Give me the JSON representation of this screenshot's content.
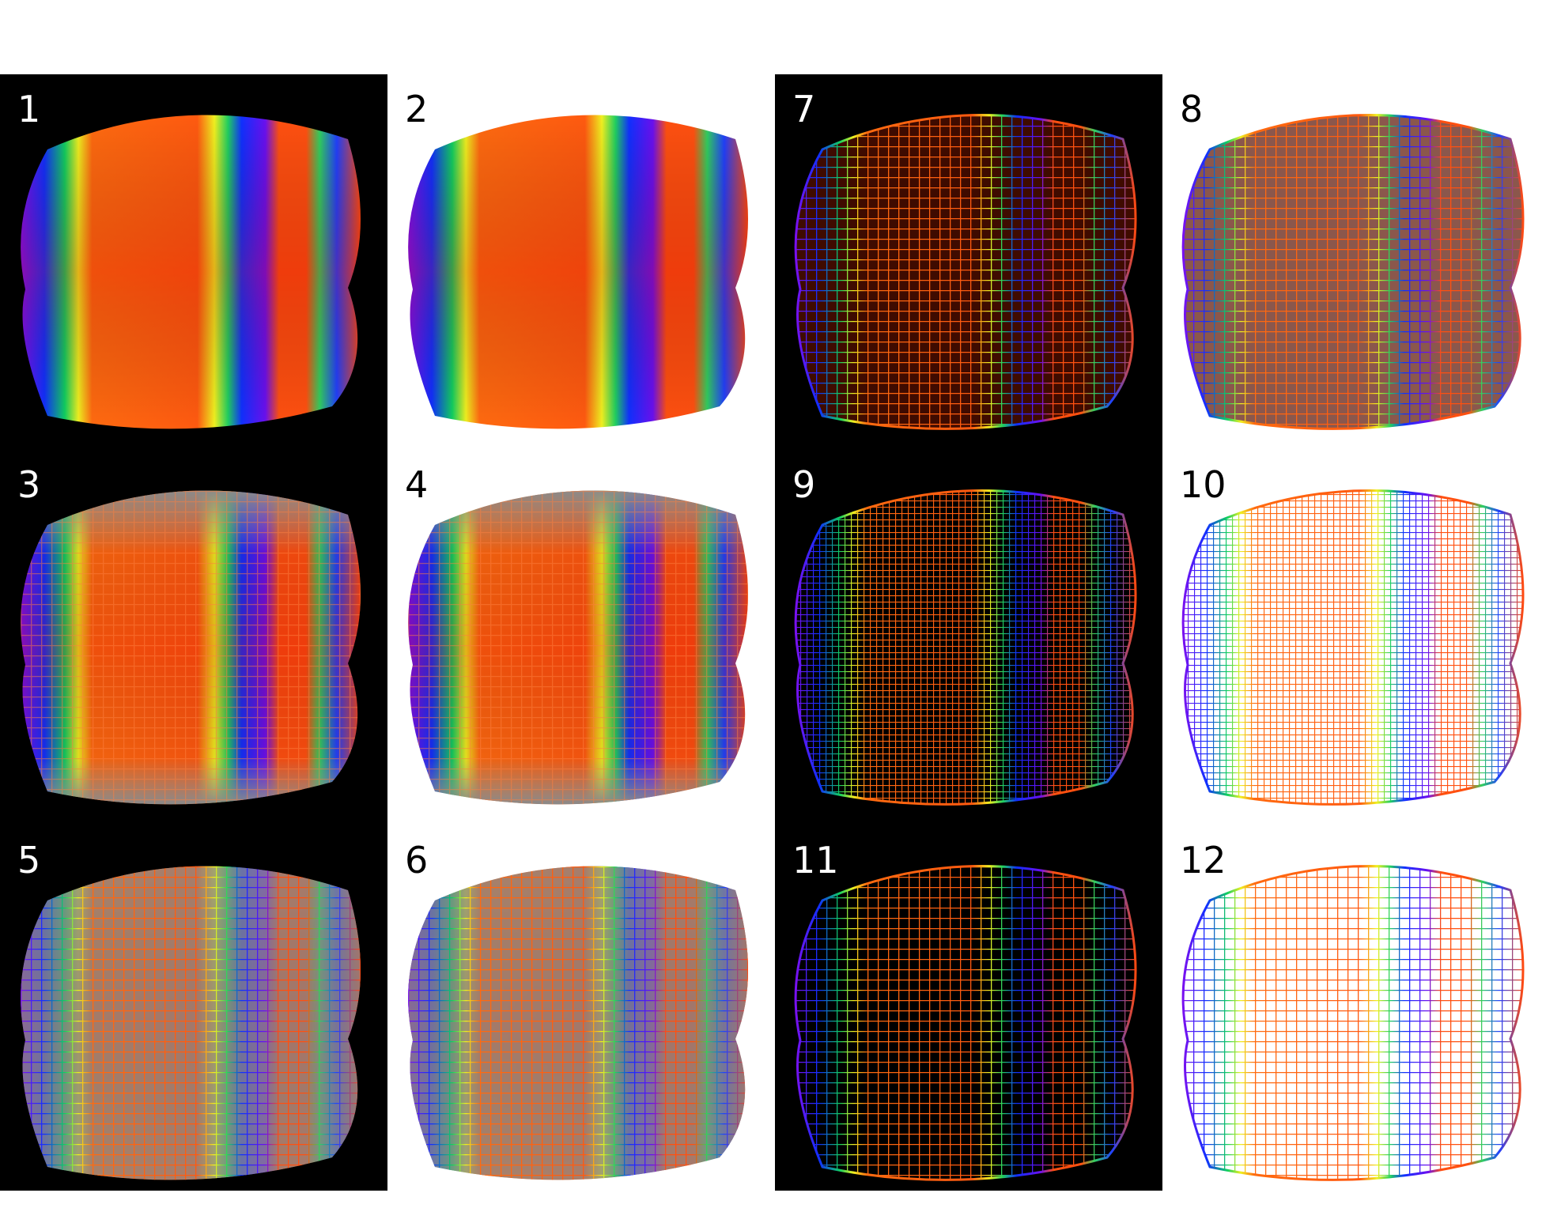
{
  "panels": [
    {
      "label": "1"
    },
    {
      "label": "2"
    },
    {
      "label": "3"
    },
    {
      "label": "4"
    },
    {
      "label": "5"
    },
    {
      "label": "6"
    },
    {
      "label": "7"
    },
    {
      "label": "8"
    },
    {
      "label": "9"
    },
    {
      "label": "10"
    },
    {
      "label": "11"
    },
    {
      "label": "12"
    }
  ]
}
